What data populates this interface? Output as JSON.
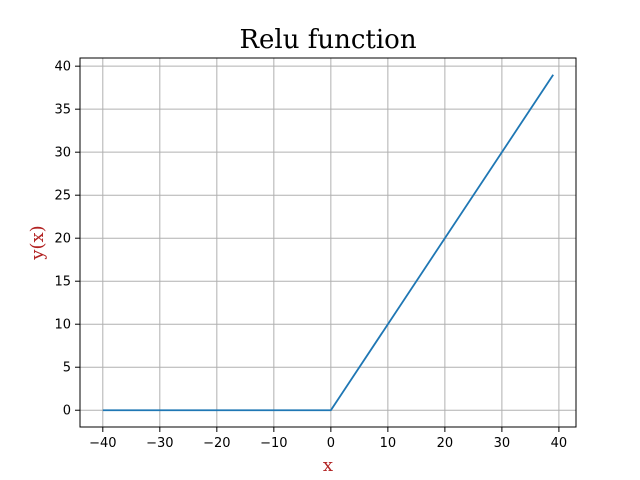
{
  "chart_data": {
    "type": "line",
    "title": "Relu function",
    "xlabel": "x",
    "ylabel": "y(x)",
    "xlim": [
      -44,
      43
    ],
    "ylim": [
      -1.95,
      40.95
    ],
    "grid": true,
    "xticks": [
      -40,
      -30,
      -20,
      -10,
      0,
      10,
      20,
      30,
      40
    ],
    "yticks": [
      0,
      5,
      10,
      15,
      20,
      25,
      30,
      35,
      40
    ],
    "xtick_labels": [
      "−40",
      "−30",
      "−20",
      "−10",
      "0",
      "10",
      "20",
      "30",
      "40"
    ],
    "ytick_labels": [
      "0",
      "5",
      "10",
      "15",
      "20",
      "25",
      "30",
      "35",
      "40"
    ],
    "series": [
      {
        "color": "#1f77b4",
        "points": [
          [
            -40,
            0
          ],
          [
            0,
            0
          ],
          [
            39,
            39
          ]
        ]
      }
    ],
    "colors": {
      "line": "#1f77b4",
      "grid": "#b0b0b0",
      "axis_label": "#b22222"
    }
  }
}
